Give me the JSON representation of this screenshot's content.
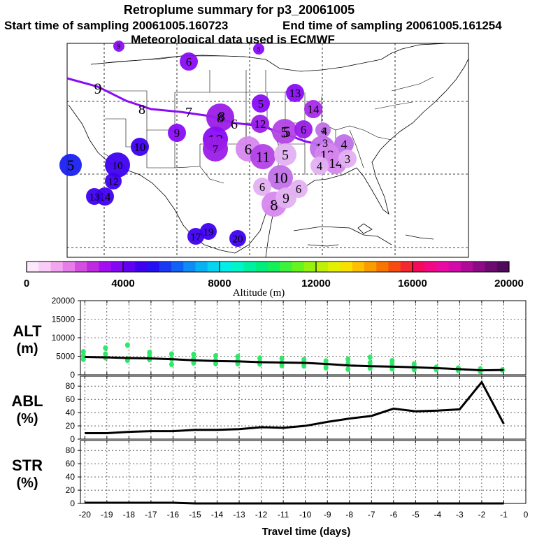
{
  "title": {
    "line1": "Retroplume summary for p3_20061005",
    "line2a": "Start time of sampling 20061005.160723",
    "line2b": "End time of sampling 20061005.161254",
    "line3": "Meteorological data used is ECMWF"
  },
  "colorbar": {
    "label": "Altitude (m)",
    "ticks": [
      "0",
      "4000",
      "8000",
      "12000",
      "16000",
      "20000"
    ],
    "colors": [
      "#fde8fb",
      "#f9cdf7",
      "#f2a6f0",
      "#e67de8",
      "#d24fe0",
      "#bd2adf",
      "#a30ef0",
      "#8408f4",
      "#6200f2",
      "#3f00f0",
      "#2410f0",
      "#1a37f2",
      "#1061f4",
      "#0c8cf4",
      "#08b2f2",
      "#06d4f0",
      "#03ede8",
      "#00f5c8",
      "#00f0a2",
      "#00ee7c",
      "#14f05a",
      "#3cf23c",
      "#66f41e",
      "#94f20c",
      "#bef008",
      "#e3f004",
      "#fae000",
      "#fcc000",
      "#fa9c00",
      "#f87600",
      "#f64c10",
      "#f42830",
      "#f40a5a",
      "#f20884",
      "#e80aa2",
      "#d20aa8",
      "#b00a98",
      "#8c0a84",
      "#6c0a70",
      "#500a5a"
    ]
  },
  "map": {
    "trajectory_labels": [
      "9",
      "8",
      "7",
      "8",
      "6",
      "5",
      "4",
      "3"
    ],
    "clusters": [
      {
        "label": "9",
        "color": "#8a0cf6"
      },
      {
        "label": "6",
        "color": "#8a0cf6"
      },
      {
        "label": "5",
        "color": "#8a0cf6"
      },
      {
        "label": "13",
        "color": "#8a0cf6"
      },
      {
        "label": "5",
        "color": "#8a0cf6"
      },
      {
        "label": "14",
        "color": "#a52ae8"
      },
      {
        "label": "8",
        "color": "#9a1ce8"
      },
      {
        "label": "12",
        "color": "#9a1ce8"
      },
      {
        "label": "5",
        "color": "#b342e6"
      },
      {
        "label": "6",
        "color": "#9a1ce8"
      },
      {
        "label": "4",
        "color": "#c070e8"
      },
      {
        "label": "9",
        "color": "#8a0cf6"
      },
      {
        "label": "18",
        "color": "#8a0cf6"
      },
      {
        "label": "7",
        "color": "#9a1ce8"
      },
      {
        "label": "10",
        "color": "#3f00f0"
      },
      {
        "label": "5",
        "color": "#1a20f0"
      },
      {
        "label": "10",
        "color": "#3f00f0"
      },
      {
        "label": "12",
        "color": "#3f00f0"
      },
      {
        "label": "14",
        "color": "#3f00f0"
      },
      {
        "label": "13",
        "color": "#3f00f0"
      },
      {
        "label": "6",
        "color": "#d687ee"
      },
      {
        "label": "11",
        "color": "#b342e6"
      },
      {
        "label": "5",
        "color": "#e3b0f2"
      },
      {
        "label": "13",
        "color": "#c070e8"
      },
      {
        "label": "4",
        "color": "#c070e8"
      },
      {
        "label": "12",
        "color": "#d687ee"
      },
      {
        "label": "14",
        "color": "#d687ee"
      },
      {
        "label": "3",
        "color": "#e3b0f2"
      },
      {
        "label": "4",
        "color": "#e3b0f2"
      },
      {
        "label": "10",
        "color": "#c070e8"
      },
      {
        "label": "6",
        "color": "#e3b0f2"
      },
      {
        "label": "6",
        "color": "#e3b0f2"
      },
      {
        "label": "8",
        "color": "#d687ee"
      },
      {
        "label": "9",
        "color": "#e3b0f2"
      },
      {
        "label": "17",
        "color": "#3f00f0"
      },
      {
        "label": "19",
        "color": "#3f00f0"
      },
      {
        "label": "20",
        "color": "#3f00f0"
      }
    ]
  },
  "chart_data": [
    {
      "type": "line",
      "name": "altitude",
      "ylabel": "ALT (m)",
      "ylabel_line1": "ALT",
      "ylabel_line2": "(m)",
      "ylim": [
        0,
        20000
      ],
      "yticks": [
        "0",
        "5000",
        "10000",
        "15000",
        "20000"
      ],
      "x": [
        -20,
        -19,
        -18,
        -17,
        -16,
        -15,
        -14,
        -13,
        -12,
        -11,
        -10,
        -9,
        -8,
        -7,
        -6,
        -5,
        -4,
        -3,
        -2,
        -1
      ],
      "values": [
        4800,
        4700,
        4500,
        4400,
        4200,
        3900,
        3700,
        3600,
        3400,
        3300,
        3200,
        2900,
        2500,
        2300,
        2200,
        2000,
        1800,
        1500,
        1200,
        1300
      ],
      "scatter_color": "#2fe86a",
      "scatter_points": [
        [
          -20,
          6200
        ],
        [
          -20,
          5100
        ],
        [
          -20,
          4200
        ],
        [
          -19,
          7200
        ],
        [
          -19,
          5600
        ],
        [
          -19,
          4600
        ],
        [
          -18,
          8000
        ],
        [
          -18,
          4300
        ],
        [
          -18,
          3900
        ],
        [
          -17,
          6000
        ],
        [
          -17,
          5000
        ],
        [
          -17,
          4100
        ],
        [
          -16,
          5600
        ],
        [
          -16,
          4300
        ],
        [
          -16,
          2800
        ],
        [
          -15,
          5500
        ],
        [
          -15,
          4300
        ],
        [
          -15,
          3200
        ],
        [
          -14,
          5100
        ],
        [
          -14,
          3900
        ],
        [
          -14,
          3000
        ],
        [
          -13,
          4900
        ],
        [
          -13,
          3800
        ],
        [
          -13,
          3000
        ],
        [
          -12,
          4500
        ],
        [
          -12,
          3400
        ],
        [
          -12,
          2900
        ],
        [
          -11,
          4400
        ],
        [
          -11,
          3200
        ],
        [
          -11,
          2500
        ],
        [
          -10,
          4100
        ],
        [
          -10,
          3300
        ],
        [
          -10,
          2400
        ],
        [
          -9,
          3700
        ],
        [
          -9,
          2700
        ],
        [
          -9,
          1900
        ],
        [
          -8,
          4200
        ],
        [
          -8,
          3000
        ],
        [
          -8,
          1500
        ],
        [
          -7,
          4700
        ],
        [
          -7,
          3200
        ],
        [
          -7,
          1800
        ],
        [
          -6,
          3800
        ],
        [
          -6,
          3000
        ],
        [
          -6,
          1600
        ],
        [
          -5,
          2900
        ],
        [
          -5,
          2200
        ],
        [
          -5,
          1400
        ],
        [
          -4,
          2000
        ],
        [
          -4,
          1400
        ],
        [
          -3,
          1800
        ],
        [
          -3,
          1200
        ],
        [
          -2,
          1600
        ],
        [
          -2,
          1300
        ],
        [
          -2,
          900
        ],
        [
          -1,
          1300
        ]
      ]
    },
    {
      "type": "line",
      "name": "abl",
      "ylabel": "ABL (%)",
      "ylabel_line1": "ABL",
      "ylabel_line2": "(%)",
      "ylim": [
        0,
        95
      ],
      "yticks": [
        "0",
        "20",
        "40",
        "60",
        "80"
      ],
      "x": [
        -20,
        -19,
        -18,
        -17,
        -16,
        -15,
        -14,
        -13,
        -12,
        -11,
        -10,
        -9,
        -8,
        -7,
        -6,
        -5,
        -4,
        -3,
        -2,
        -1
      ],
      "values": [
        9,
        9,
        11,
        12,
        12,
        14,
        14,
        15,
        18,
        17,
        20,
        26,
        31,
        35,
        46,
        42,
        43,
        45,
        86,
        23
      ]
    },
    {
      "type": "line",
      "name": "stratosphere",
      "ylabel": "STR (%)",
      "ylabel_line1": "STR",
      "ylabel_line2": "(%)",
      "ylim": [
        0,
        95
      ],
      "yticks": [
        "0",
        "20",
        "40",
        "60",
        "80"
      ],
      "x": [
        -20,
        -19,
        -18,
        -17,
        -16,
        -15,
        -14,
        -13,
        -12,
        -11,
        -10,
        -9,
        -8,
        -7,
        -6,
        -5,
        -4,
        -3,
        -2,
        -1
      ],
      "values": [
        1,
        1,
        1,
        1,
        1,
        0,
        0,
        0,
        0,
        0,
        0,
        0,
        0,
        0,
        0,
        0,
        0,
        0,
        0,
        0
      ],
      "xlabel": "Travel time (days)",
      "xticks": [
        "-20",
        "-19",
        "-18",
        "-17",
        "-16",
        "-15",
        "-14",
        "-13",
        "-12",
        "-11",
        "-10",
        "-9",
        "-8",
        "-7",
        "-6",
        "-5",
        "-4",
        "-3",
        "-2",
        "-1",
        "0"
      ]
    }
  ]
}
